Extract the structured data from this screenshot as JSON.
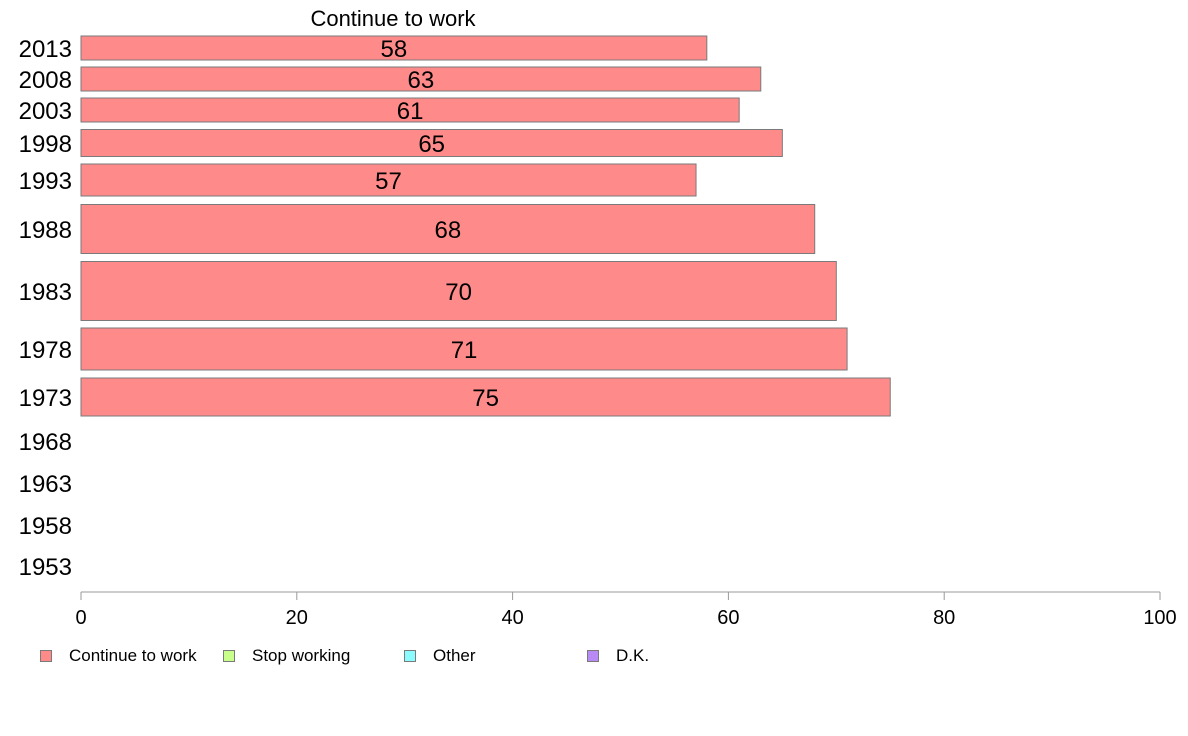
{
  "chart_data": {
    "type": "bar",
    "orientation": "horizontal",
    "stacked": true,
    "title": "Continue to work",
    "categories": [
      "2013",
      "2008",
      "2003",
      "1998",
      "1993",
      "1988",
      "1983",
      "1978",
      "1973",
      "1968",
      "1963",
      "1958",
      "1953"
    ],
    "series": [
      {
        "name": "Continue to work",
        "color": "#ff8a8a",
        "values": [
          58,
          63,
          61,
          65,
          57,
          68,
          70,
          71,
          75,
          null,
          null,
          null,
          null
        ],
        "labels": [
          "58",
          "63",
          "61",
          "65",
          "57",
          "68",
          "70",
          "71",
          "75",
          "",
          "",
          "",
          ""
        ]
      },
      {
        "name": "Stop working",
        "color": "#c8ff8a",
        "values": [
          null,
          null,
          null,
          null,
          null,
          null,
          null,
          null,
          null,
          null,
          null,
          null,
          null
        ]
      },
      {
        "name": "Other",
        "color": "#8afcff",
        "values": [
          null,
          null,
          null,
          null,
          null,
          null,
          null,
          null,
          null,
          null,
          null,
          null,
          null
        ]
      },
      {
        "name": "D.K.",
        "color": "#b98af5",
        "values": [
          null,
          null,
          null,
          null,
          null,
          null,
          null,
          null,
          null,
          null,
          null,
          null,
          null
        ]
      }
    ],
    "xlim": [
      0,
      100
    ],
    "xticks": [
      0,
      20,
      40,
      60,
      80,
      100
    ],
    "xtick_labels": [
      "0",
      "20",
      "40",
      "60",
      "80",
      "100"
    ],
    "grid": false,
    "legend_position": "bottom-left",
    "bar_border_color": "#7a7a7a",
    "axis_color": "#999999"
  }
}
